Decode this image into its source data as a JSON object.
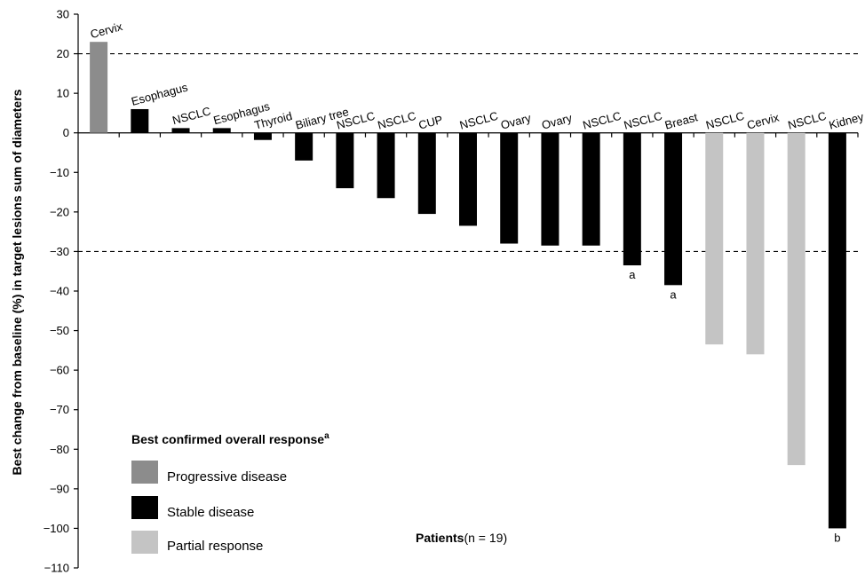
{
  "chart_data": {
    "type": "bar",
    "ylabel": "Best change from baseline (%) in target lesions sum of diameters",
    "xlabel": "Patients",
    "xlabel_n": "(n = 19)",
    "ylim": [
      -110,
      30
    ],
    "yticks": [
      30,
      20,
      10,
      0,
      -10,
      -20,
      -30,
      -40,
      -50,
      -60,
      -70,
      -80,
      -90,
      -100,
      -110
    ],
    "reference_lines": [
      20,
      -30
    ],
    "categories": [
      "Cervix",
      "Esophagus",
      "NSCLC",
      "Esophagus",
      "Thyroid",
      "Biliary tree",
      "NSCLC",
      "NSCLC",
      "CUP",
      "NSCLC",
      "Ovary",
      "Ovary",
      "NSCLC",
      "NSCLC",
      "Breast",
      "NSCLC",
      "Cervix",
      "NSCLC",
      "Kidney"
    ],
    "values": [
      23,
      6,
      1.2,
      1.2,
      -1.8,
      -7,
      -14,
      -16.5,
      -20.5,
      -23.5,
      -28,
      -28.5,
      -28.5,
      -33.5,
      -38.5,
      -53.5,
      -56,
      -84,
      -100
    ],
    "response": [
      "Progressive disease",
      "Stable disease",
      "Stable disease",
      "Stable disease",
      "Stable disease",
      "Stable disease",
      "Stable disease",
      "Stable disease",
      "Stable disease",
      "Stable disease",
      "Stable disease",
      "Stable disease",
      "Stable disease",
      "Stable disease",
      "Stable disease",
      "Partial response",
      "Partial response",
      "Partial response",
      "Stable disease"
    ],
    "footnotes": [
      "",
      "",
      "",
      "",
      "",
      "",
      "",
      "",
      "",
      "",
      "",
      "",
      "",
      "a",
      "a",
      "",
      "",
      "",
      "b"
    ],
    "legend": {
      "title": "Best confirmed overall response",
      "title_superscript": "a",
      "placement": "bottom-left",
      "items": [
        {
          "label": "Progressive disease",
          "color": "#8c8c8c"
        },
        {
          "label": "Stable disease",
          "color": "#000000"
        },
        {
          "label": "Partial response",
          "color": "#c4c4c4"
        }
      ]
    },
    "grid": false
  }
}
